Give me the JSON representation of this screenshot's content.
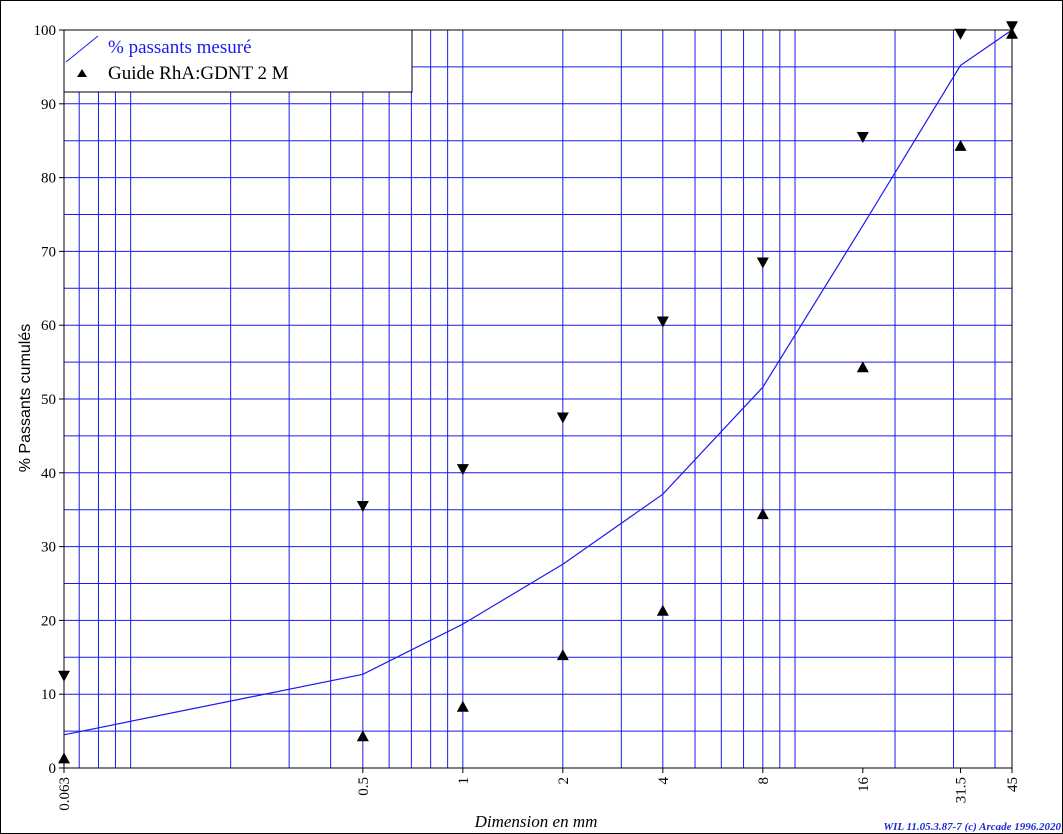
{
  "chart_data": {
    "type": "line",
    "x_scale": "log",
    "xlabel": "Dimension en mm",
    "ylabel": "% Passants cumulés",
    "ylim": [
      0,
      100
    ],
    "yticks": [
      0,
      10,
      20,
      30,
      40,
      50,
      60,
      70,
      80,
      90,
      100
    ],
    "xtick_labels": [
      "0.063",
      "0.5",
      "1",
      "2",
      "4",
      "8",
      "16",
      "31.5",
      "45"
    ],
    "grid": true,
    "legend_position": "top-left",
    "series": [
      {
        "name": "% passants mesuré",
        "color": "#1a1aee",
        "x": [
          0.063,
          0.5,
          1,
          2,
          4,
          8,
          16,
          31.5,
          45
        ],
        "y": [
          4.5,
          12.7,
          19.5,
          27.6,
          37.1,
          51.6,
          73.5,
          95.2,
          100
        ]
      },
      {
        "name": "Guide RhA:GDNT 2 M",
        "marker": "triangle",
        "color": "#000000",
        "lower": {
          "x": [
            0.063,
            0.5,
            1,
            2,
            4,
            8,
            16,
            31.5,
            45
          ],
          "y": [
            1.3,
            4.3,
            8.3,
            15.3,
            21.3,
            34.4,
            54.3,
            84.3,
            99.5
          ]
        },
        "upper": {
          "x": [
            0.063,
            0.5,
            1,
            2,
            4,
            8,
            16,
            31.5,
            45
          ],
          "y": [
            12.5,
            35.5,
            40.5,
            47.5,
            60.5,
            68.5,
            85.5,
            99.5,
            100.5
          ]
        }
      }
    ]
  },
  "legend": {
    "measured_label": "% passants mesuré",
    "guide_label": "Guide RhA:GDNT 2 M"
  },
  "footer": "WIL 11.05.3.87-7 (c) Arcade 1996.2020"
}
